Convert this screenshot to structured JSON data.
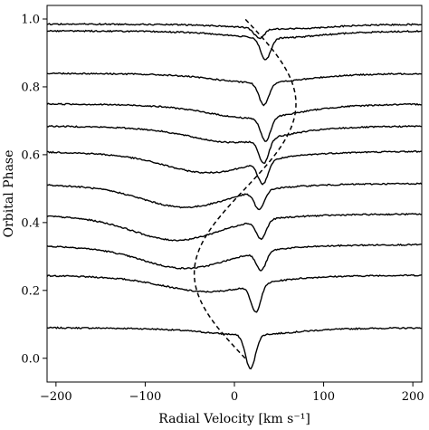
{
  "chart_data": {
    "type": "line",
    "title": "",
    "xlabel": "Radial Velocity [km s⁻¹]",
    "ylabel": "Orbital Phase",
    "xlim": [
      -210,
      210
    ],
    "ylim": [
      -0.07,
      1.04
    ],
    "xticks": [
      -200,
      -100,
      0,
      100,
      200
    ],
    "xtick_labels": [
      "−200",
      "−100",
      "0",
      "100",
      "200"
    ],
    "yticks": [
      0.0,
      0.2,
      0.4,
      0.6,
      0.8,
      1.0
    ],
    "ytick_labels": [
      "0.0",
      "0.2",
      "0.4",
      "0.6",
      "0.8",
      "1.0"
    ],
    "grid": false,
    "line_color": "#000000",
    "spectra": [
      {
        "offset": 0.09,
        "narrow_center": 18,
        "narrow_depth": 0.1,
        "broad_center": 16,
        "broad_depth": 0.015
      },
      {
        "offset": 0.245,
        "narrow_center": 24,
        "narrow_depth": 0.08,
        "broad_center": -30,
        "broad_depth": 0.035
      },
      {
        "offset": 0.335,
        "narrow_center": 30,
        "narrow_depth": 0.055,
        "broad_center": -55,
        "broad_depth": 0.05
      },
      {
        "offset": 0.425,
        "narrow_center": 30,
        "narrow_depth": 0.055,
        "broad_center": -65,
        "broad_depth": 0.055
      },
      {
        "offset": 0.515,
        "narrow_center": 28,
        "narrow_depth": 0.055,
        "broad_center": -55,
        "broad_depth": 0.05
      },
      {
        "offset": 0.61,
        "narrow_center": 32,
        "narrow_depth": 0.065,
        "broad_center": -30,
        "broad_depth": 0.045
      },
      {
        "offset": 0.685,
        "narrow_center": 33,
        "narrow_depth": 0.07,
        "broad_center": 0,
        "broad_depth": 0.035
      },
      {
        "offset": 0.75,
        "narrow_center": 35,
        "narrow_depth": 0.07,
        "broad_center": 20,
        "broad_depth": 0.03
      },
      {
        "offset": 0.84,
        "narrow_center": 33,
        "narrow_depth": 0.065,
        "broad_center": 28,
        "broad_depth": 0.02
      },
      {
        "offset": 0.965,
        "narrow_center": 35,
        "narrow_depth": 0.065,
        "broad_center": 45,
        "broad_depth": 0.015
      },
      {
        "offset": 0.985,
        "narrow_center": 28,
        "narrow_depth": 0.03,
        "broad_center": 55,
        "broad_depth": 0.01
      }
    ],
    "rv_curve": {
      "style": "dashed",
      "gamma": 12,
      "semi_amplitude": 57,
      "phase_range": [
        0.0,
        1.0
      ]
    }
  }
}
